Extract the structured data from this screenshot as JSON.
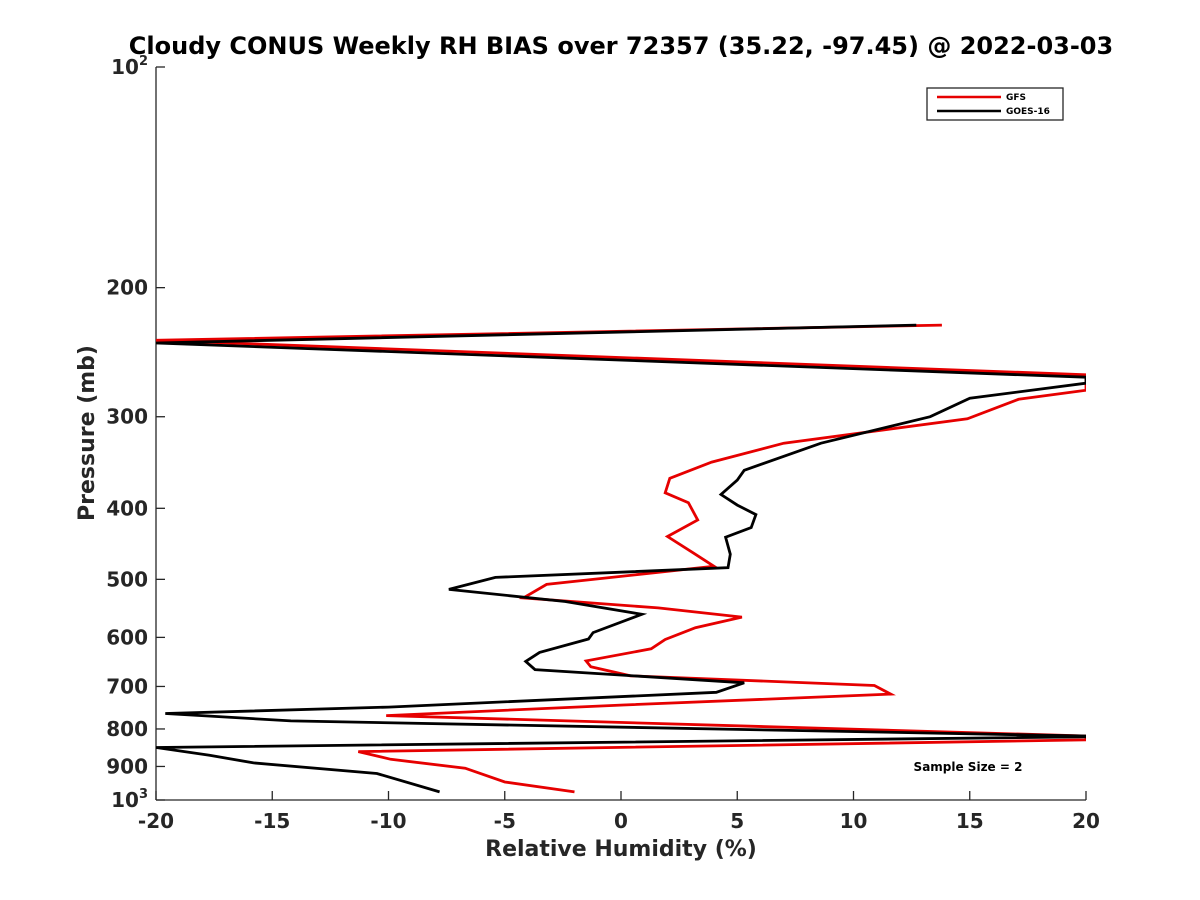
{
  "chart_data": {
    "type": "line",
    "title": "Cloudy CONUS Weekly RH BIAS over 72357 (35.22, -97.45) @ 2022-03-03",
    "xlabel": "Relative Humidity (%)",
    "ylabel": "Pressure (mb)",
    "xlim": [
      -20,
      20
    ],
    "ylim": [
      100,
      1000
    ],
    "y_scale": "log",
    "y_reversed": true,
    "x_ticks": [
      "-20",
      "-15",
      "-10",
      "-5",
      "0",
      "5",
      "10",
      "15",
      "20"
    ],
    "y_ticks": [
      {
        "value": 100,
        "base": "10",
        "exp": "2"
      },
      {
        "value": 200,
        "label": "200"
      },
      {
        "value": 300,
        "label": "300"
      },
      {
        "value": 400,
        "label": "400"
      },
      {
        "value": 500,
        "label": "500"
      },
      {
        "value": 600,
        "label": "600"
      },
      {
        "value": 700,
        "label": "700"
      },
      {
        "value": 800,
        "label": "800"
      },
      {
        "value": 900,
        "label": "900"
      },
      {
        "value": 1000,
        "base": "10",
        "exp": "3"
      }
    ],
    "grid": false,
    "legend_position": "top-right",
    "annotation": "Sample Size = 2",
    "series": [
      {
        "name": "GFS",
        "color": "#e60000",
        "points": [
          [
            13.8,
            225
          ],
          [
            -20,
            236
          ],
          [
            20,
            263
          ],
          [
            20,
            276
          ],
          [
            17.1,
            284
          ],
          [
            14.9,
            302
          ],
          [
            7.0,
            326
          ],
          [
            3.9,
            346
          ],
          [
            2.1,
            364
          ],
          [
            1.9,
            381
          ],
          [
            2.9,
            393
          ],
          [
            3.3,
            415
          ],
          [
            2.0,
            437
          ],
          [
            3.1,
            460
          ],
          [
            4.0,
            480
          ],
          [
            -3.2,
            508
          ],
          [
            -4.2,
            530
          ],
          [
            1.6,
            547
          ],
          [
            5.2,
            563
          ],
          [
            3.2,
            582
          ],
          [
            1.9,
            604
          ],
          [
            1.3,
            622
          ],
          [
            -1.5,
            646
          ],
          [
            -1.3,
            658
          ],
          [
            0.4,
            677
          ],
          [
            10.9,
            698
          ],
          [
            11.6,
            717
          ],
          [
            0.1,
            742
          ],
          [
            -10.1,
            767
          ],
          [
            20,
            818
          ],
          [
            20,
            828
          ],
          [
            -11.3,
            859
          ],
          [
            -9.9,
            880
          ],
          [
            -6.7,
            905
          ],
          [
            -5.0,
            945
          ],
          [
            -2.0,
            975
          ]
        ]
      },
      {
        "name": "GOES-16",
        "color": "#000000",
        "points": [
          [
            12.7,
            225
          ],
          [
            -20,
            238
          ],
          [
            20,
            265
          ],
          [
            20,
            270
          ],
          [
            15.0,
            283
          ],
          [
            13.3,
            300
          ],
          [
            8.6,
            326
          ],
          [
            5.3,
            355
          ],
          [
            5.0,
            366
          ],
          [
            4.3,
            383
          ],
          [
            5.0,
            396
          ],
          [
            5.8,
            408
          ],
          [
            5.6,
            425
          ],
          [
            4.5,
            438
          ],
          [
            4.7,
            462
          ],
          [
            4.6,
            482
          ],
          [
            -5.4,
            497
          ],
          [
            -7.4,
            516
          ],
          [
            -2.4,
            536
          ],
          [
            0.9,
            558
          ],
          [
            -1.2,
            591
          ],
          [
            -1.4,
            603
          ],
          [
            -3.5,
            629
          ],
          [
            -4.1,
            647
          ],
          [
            -3.7,
            664
          ],
          [
            5.3,
            692
          ],
          [
            4.1,
            713
          ],
          [
            -10.0,
            747
          ],
          [
            -19.6,
            762
          ],
          [
            -14.2,
            780
          ],
          [
            20,
            818
          ],
          [
            20,
            820
          ],
          [
            -20,
            848
          ],
          [
            -17.7,
            869
          ],
          [
            -15.8,
            890
          ],
          [
            -10.5,
            920
          ],
          [
            -7.8,
            975
          ]
        ]
      }
    ]
  }
}
